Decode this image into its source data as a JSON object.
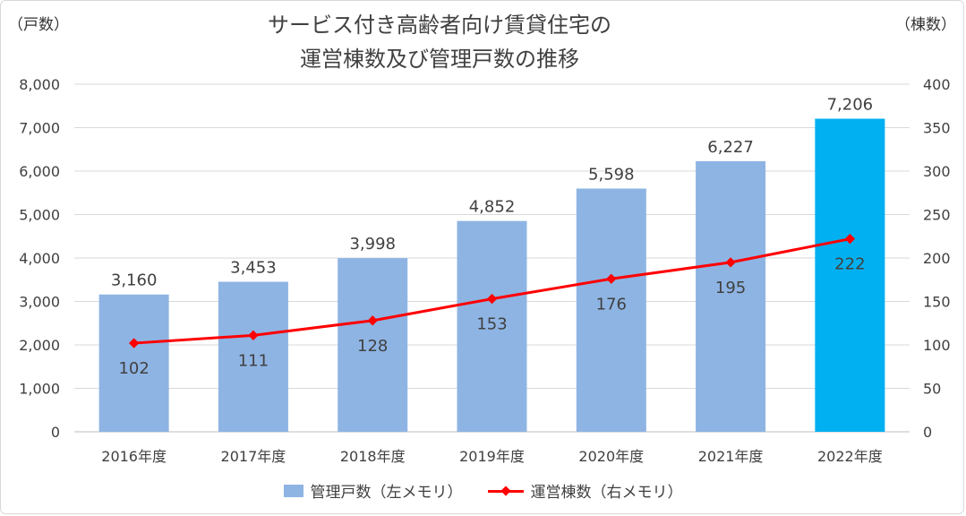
{
  "chart_data": {
    "type": "bar+line",
    "title_lines": [
      "サービス付き高齢者向け賃貸住宅の",
      "運営棟数及び管理戸数の推移"
    ],
    "left_axis_unit": "（戸数）",
    "right_axis_unit": "（棟数）",
    "categories": [
      "2016年度",
      "2017年度",
      "2018年度",
      "2019年度",
      "2020年度",
      "2021年度",
      "2022年度"
    ],
    "left_ylim": [
      0,
      8000
    ],
    "left_ticks": [
      0,
      1000,
      2000,
      3000,
      4000,
      5000,
      6000,
      7000,
      8000
    ],
    "left_tick_labels": [
      "0",
      "1,000",
      "2,000",
      "3,000",
      "4,000",
      "5,000",
      "6,000",
      "7,000",
      "8,000"
    ],
    "right_ylim": [
      0,
      400
    ],
    "right_ticks": [
      0,
      50,
      100,
      150,
      200,
      250,
      300,
      350,
      400
    ],
    "right_tick_labels": [
      "0",
      "50",
      "100",
      "150",
      "200",
      "250",
      "300",
      "350",
      "400"
    ],
    "grid": true,
    "series": [
      {
        "name": "管理戸数（左メモリ）",
        "type": "bar",
        "axis": "left",
        "values": [
          3160,
          3453,
          3998,
          4852,
          5598,
          6227,
          7206
        ],
        "labels": [
          "3,160",
          "3,453",
          "3,998",
          "4,852",
          "5,598",
          "6,227",
          "7,206"
        ],
        "color": "#8eb4e3",
        "highlight_color": "#00b0f0",
        "highlight_index": 6
      },
      {
        "name": "運営棟数（右メモリ）",
        "type": "line",
        "axis": "right",
        "values": [
          102,
          111,
          128,
          153,
          176,
          195,
          222
        ],
        "labels": [
          "102",
          "111",
          "128",
          "153",
          "176",
          "195",
          "222"
        ],
        "color": "#ff0000"
      }
    ],
    "legend_position": "bottom"
  }
}
